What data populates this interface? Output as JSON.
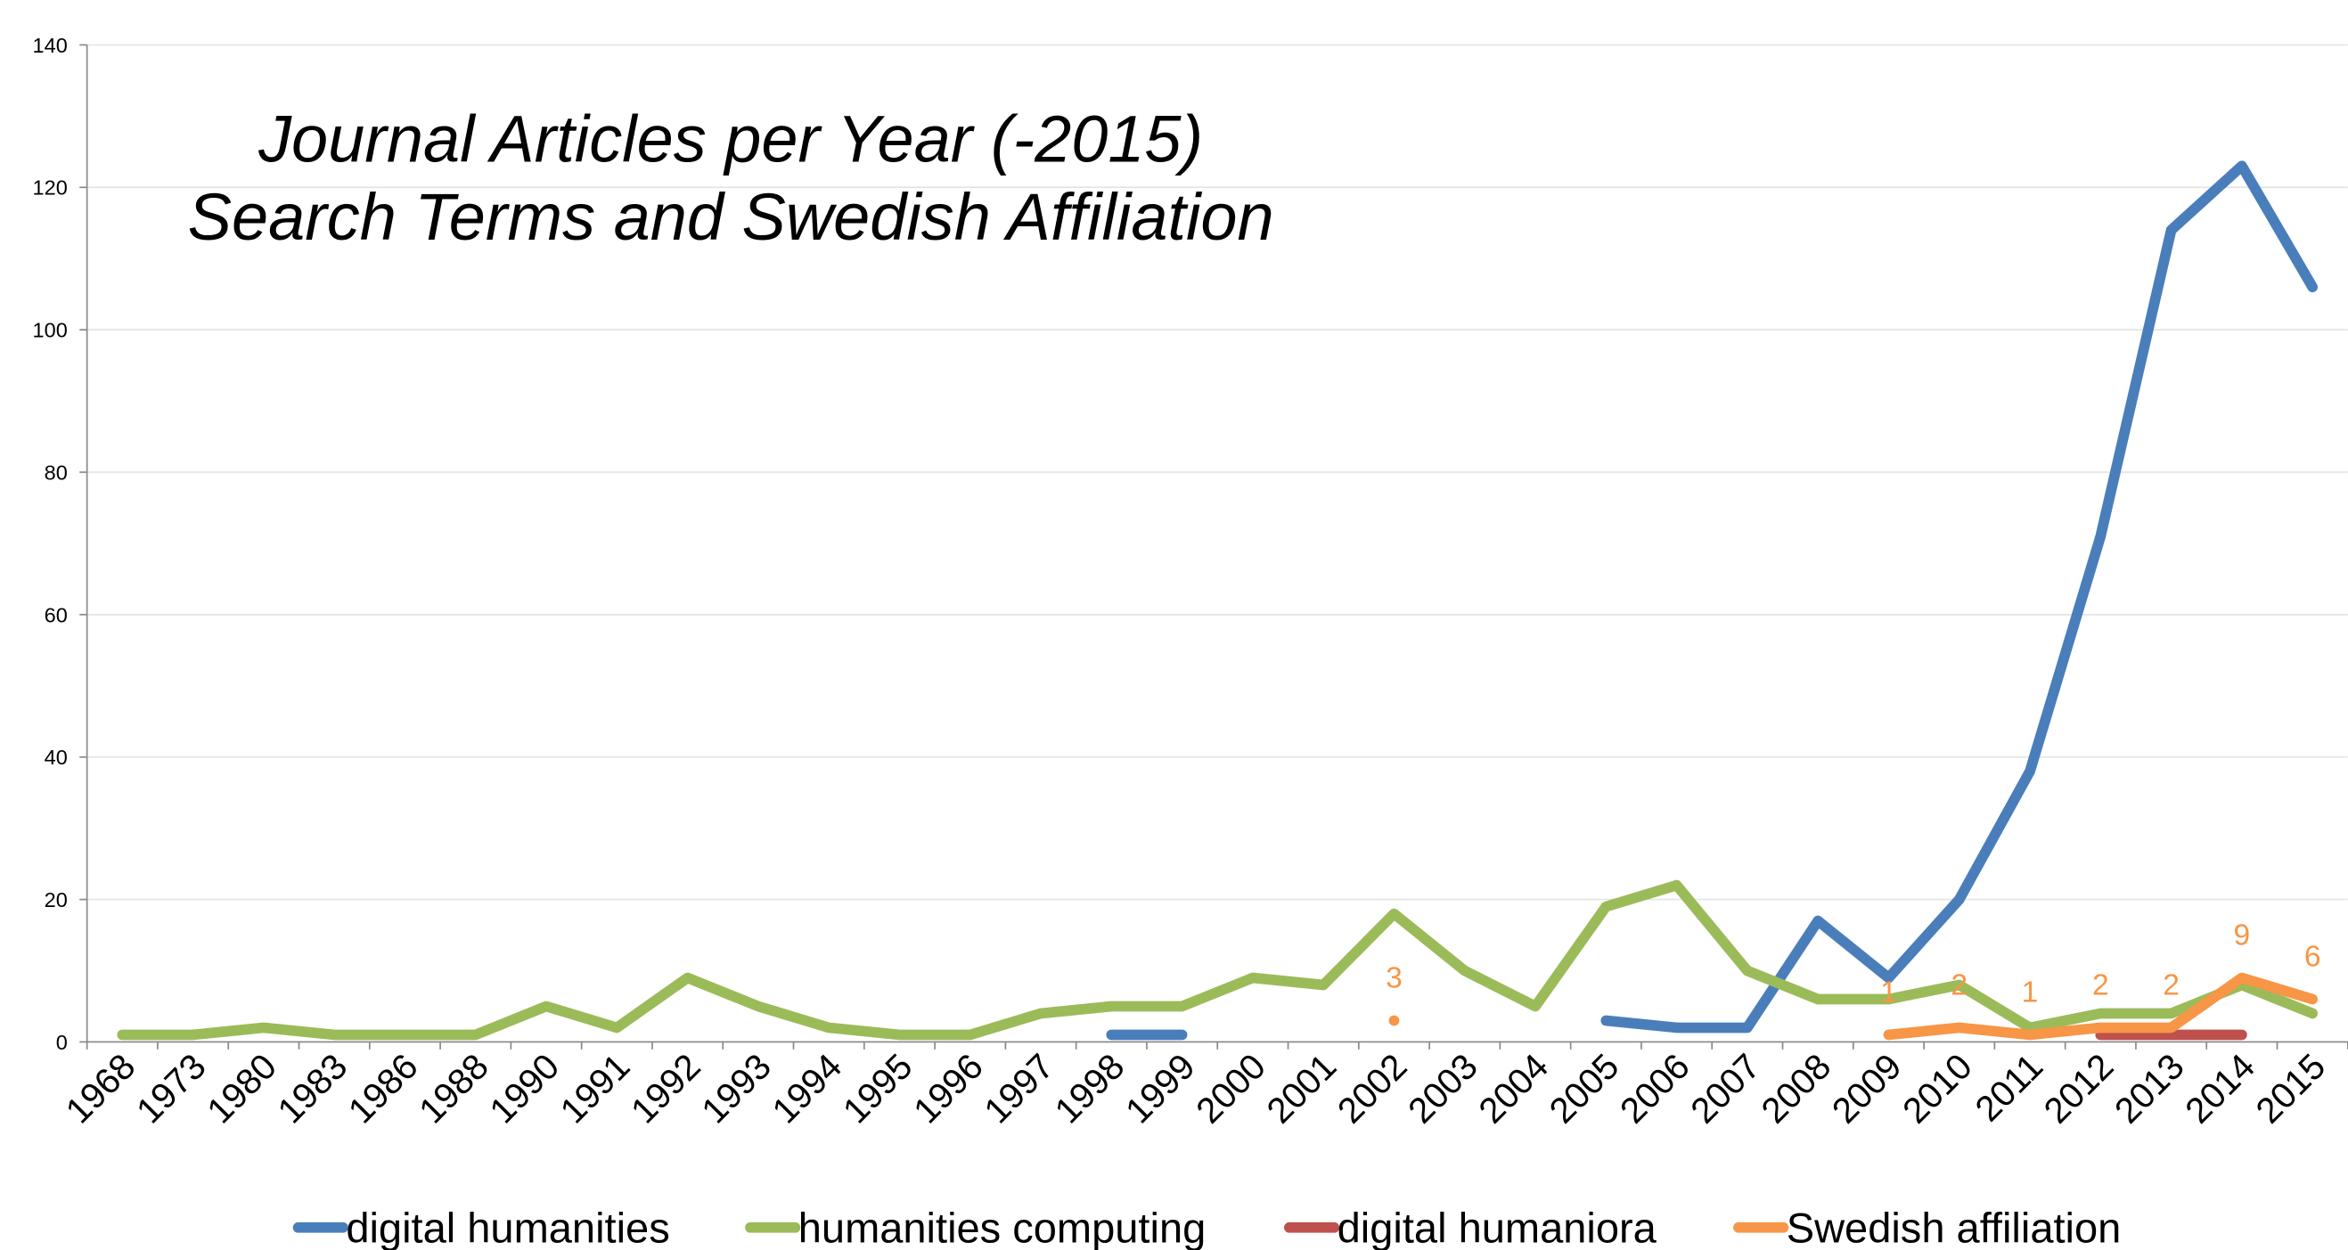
{
  "chart_data": {
    "type": "line",
    "title": [
      "Journal Articles per Year (-2015)",
      "Search Terms and Swedish Affiliation"
    ],
    "categories": [
      "1968",
      "1973",
      "1980",
      "1983",
      "1986",
      "1988",
      "1990",
      "1991",
      "1992",
      "1993",
      "1994",
      "1995",
      "1996",
      "1997",
      "1998",
      "1999",
      "2000",
      "2001",
      "2002",
      "2003",
      "2004",
      "2005",
      "2006",
      "2007",
      "2008",
      "2009",
      "2010",
      "2011",
      "2012",
      "2013",
      "2014",
      "2015"
    ],
    "series": [
      {
        "name": "digital humanities",
        "color": "#4a7ebb",
        "values": [
          null,
          null,
          null,
          null,
          null,
          null,
          null,
          null,
          null,
          null,
          null,
          null,
          null,
          null,
          1,
          1,
          null,
          null,
          null,
          null,
          null,
          3,
          2,
          2,
          17,
          9,
          20,
          38,
          71,
          114,
          123,
          106
        ]
      },
      {
        "name": "humanities computing",
        "color": "#9bbb59",
        "values": [
          1,
          1,
          2,
          1,
          1,
          1,
          5,
          2,
          9,
          5,
          2,
          1,
          1,
          4,
          5,
          5,
          9,
          8,
          18,
          10,
          5,
          19,
          22,
          10,
          6,
          6,
          8,
          2,
          4,
          4,
          8,
          4
        ]
      },
      {
        "name": "digital humaniora",
        "color": "#c0504d",
        "values": [
          null,
          null,
          null,
          null,
          null,
          null,
          null,
          null,
          null,
          null,
          null,
          null,
          null,
          null,
          null,
          null,
          null,
          null,
          null,
          null,
          null,
          null,
          null,
          null,
          null,
          null,
          null,
          null,
          1,
          1,
          1,
          null
        ]
      },
      {
        "name": "Swedish affiliation",
        "color": "#f79646",
        "data_labels": true,
        "values": [
          null,
          null,
          null,
          null,
          null,
          null,
          null,
          null,
          null,
          null,
          null,
          null,
          null,
          null,
          null,
          null,
          null,
          null,
          3,
          null,
          null,
          null,
          null,
          null,
          null,
          1,
          2,
          1,
          2,
          2,
          9,
          6
        ]
      }
    ],
    "ylim": [
      0,
      140
    ],
    "yticks": [
      0,
      20,
      40,
      60,
      80,
      100,
      120,
      140
    ],
    "grid": true,
    "legend": "bottom"
  }
}
